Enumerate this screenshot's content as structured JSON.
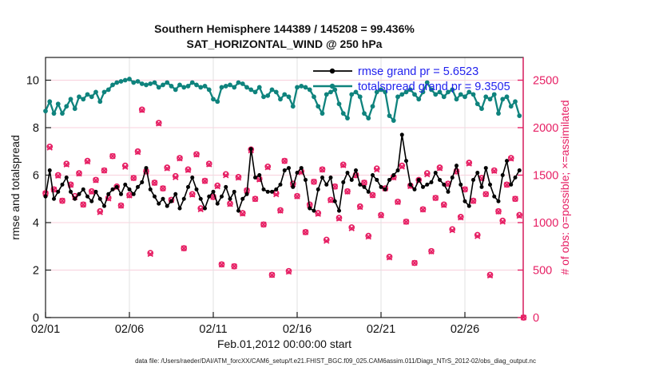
{
  "title": {
    "line1": "Southern Hemisphere 144389 / 145208 = 99.436%",
    "line2": "SAT_HORIZONTAL_WIND @ 250 hPa"
  },
  "colors": {
    "rmse": "#000000",
    "totalspread": "#0f837d",
    "obs": "#e61e63",
    "legend_text": "#2222ee",
    "grid_h": "#f8d0dc",
    "grid_v": "#e2e2e2",
    "spine": "#1a1a1a"
  },
  "axes": {
    "left": {
      "label": "rmse and totalspread",
      "ticks": [
        0,
        2,
        4,
        6,
        8,
        10
      ],
      "range": [
        0,
        10.96
      ]
    },
    "right": {
      "label": "# of obs: o=possible; ×=assimilated",
      "ticks": [
        0,
        500,
        1000,
        1500,
        2000,
        2500
      ],
      "range": [
        0,
        2740
      ]
    },
    "x": {
      "label": "Feb.01,2012 00:00:00 start",
      "tick_days": [
        1,
        6,
        11,
        16,
        21,
        26
      ],
      "tick_labels": [
        "02/01",
        "02/06",
        "02/11",
        "02/16",
        "02/21",
        "02/26"
      ],
      "range_days": [
        1,
        29.5
      ]
    }
  },
  "legend": {
    "items": [
      {
        "name": "rmse",
        "label": "rmse grand pr = 5.6523"
      },
      {
        "name": "totalspread",
        "label": "totalspread grand pr = 9.3505"
      }
    ]
  },
  "footer": {
    "datafile": "data file: /Users/raeder/DAI/ATM_forcXX/CAM6_setup/f.e21.FHIST_BGC.f09_025.CAM6assim.011/Diags_NTrS_2012-02/obs_diag_output.nc"
  },
  "chart_data": {
    "type": "line",
    "title": "Southern Hemisphere 144389 / 145208 = 99.436% | SAT_HORIZONTAL_WIND @ 250 hPa",
    "xlabel": "Feb.01,2012 00:00:00 start",
    "ylabel_left": "rmse and totalspread",
    "ylabel_right": "# of obs: o=possible; ×=assimilated",
    "grid": true,
    "legend_position": "top-right-inside",
    "x_start": 1.0,
    "x_step": 0.25,
    "n_points": 115,
    "series": [
      {
        "name": "rmse",
        "axis": "left",
        "marker": "filled-circle",
        "grand_value": 5.6523,
        "values": [
          5.1,
          6.2,
          5.0,
          5.3,
          5.6,
          5.9,
          5.3,
          5.0,
          5.2,
          5.4,
          5.1,
          4.9,
          5.3,
          5.0,
          4.7,
          5.2,
          5.4,
          5.5,
          5.2,
          5.6,
          5.4,
          5.2,
          5.5,
          5.7,
          6.3,
          5.4,
          5.1,
          4.8,
          5.0,
          4.7,
          4.9,
          5.2,
          4.6,
          5.0,
          5.5,
          5.9,
          5.4,
          5.0,
          4.6,
          5.1,
          5.3,
          4.8,
          5.1,
          5.5,
          5.0,
          5.3,
          4.5,
          5.0,
          5.2,
          7.1,
          5.9,
          6.0,
          5.4,
          5.3,
          5.3,
          5.4,
          5.6,
          6.2,
          6.3,
          5.5,
          6.1,
          6.3,
          5.8,
          4.6,
          4.5,
          5.4,
          5.9,
          5.6,
          5.9,
          4.9,
          4.5,
          5.7,
          6.1,
          5.8,
          6.2,
          5.6,
          5.5,
          5.3,
          6.0,
          5.8,
          5.5,
          5.4,
          5.8,
          6.0,
          6.2,
          7.7,
          6.6,
          5.6,
          5.4,
          5.8,
          5.5,
          5.6,
          5.7,
          6.1,
          5.8,
          5.6,
          5.3,
          5.9,
          6.4,
          5.6,
          4.9,
          4.7,
          5.8,
          6.1,
          5.5,
          6.3,
          5.6,
          5.1,
          4.9,
          6.0,
          6.6,
          5.6,
          5.9,
          6.2,
          null
        ]
      },
      {
        "name": "totalspread",
        "axis": "left",
        "marker": "filled-circle",
        "grand_value": 9.3505,
        "values": [
          8.7,
          9.1,
          8.6,
          9.0,
          8.6,
          8.9,
          9.2,
          8.8,
          9.3,
          9.2,
          9.4,
          9.3,
          9.5,
          9.1,
          9.5,
          9.6,
          9.8,
          9.9,
          9.95,
          10.0,
          10.05,
          9.9,
          9.95,
          9.85,
          9.8,
          9.85,
          9.9,
          9.7,
          9.8,
          9.9,
          9.75,
          9.6,
          9.8,
          9.7,
          9.75,
          9.9,
          9.8,
          9.7,
          9.75,
          9.6,
          9.2,
          9.1,
          9.7,
          9.75,
          9.8,
          9.7,
          9.9,
          9.85,
          9.7,
          9.6,
          9.5,
          9.7,
          9.3,
          9.35,
          9.6,
          9.5,
          9.2,
          9.4,
          9.3,
          8.9,
          9.7,
          9.75,
          9.7,
          9.6,
          9.3,
          8.9,
          8.6,
          9.4,
          9.5,
          9.6,
          9.0,
          8.6,
          8.4,
          9.4,
          9.5,
          9.3,
          8.6,
          8.4,
          8.9,
          9.5,
          9.6,
          9.5,
          8.5,
          8.3,
          9.3,
          9.4,
          9.5,
          9.6,
          9.4,
          9.2,
          9.5,
          9.9,
          9.6,
          9.4,
          9.5,
          9.3,
          9.5,
          9.6,
          9.2,
          9.4,
          9.3,
          9.5,
          9.4,
          9.0,
          8.8,
          9.3,
          9.2,
          9.4,
          8.6,
          9.2,
          9.3,
          8.9,
          9.1,
          8.5,
          null
        ]
      },
      {
        "name": "obs_possible",
        "axis": "right",
        "marker": "o",
        "values": [
          1310,
          1800,
          1350,
          1500,
          1230,
          1620,
          1400,
          1280,
          1520,
          1190,
          1650,
          1330,
          1450,
          1120,
          1550,
          1260,
          1700,
          1380,
          1180,
          1600,
          1290,
          1470,
          1750,
          2190,
          1540,
          680,
          1420,
          2050,
          1360,
          1580,
          1240,
          1490,
          1680,
          730,
          1560,
          1300,
          1720,
          1150,
          1440,
          1620,
          1270,
          1390,
          560,
          1510,
          1200,
          540,
          1480,
          1100,
          1340,
          1770,
          1250,
          1460,
          980,
          1590,
          450,
          1310,
          1130,
          1650,
          490,
          1410,
          1280,
          1540,
          900,
          1190,
          1430,
          1100,
          1560,
          820,
          1240,
          1380,
          1050,
          1610,
          1330,
          950,
          1500,
          1170,
          1420,
          860,
          1290,
          1570,
          1080,
          1360,
          640,
          1480,
          1220,
          1600,
          1010,
          1390,
          575,
          1450,
          1140,
          1520,
          700,
          1260,
          1580,
          1190,
          1410,
          930,
          1540,
          1060,
          1350,
          1630,
          1230,
          870,
          1470,
          1300,
          450,
          1550,
          1120,
          1020,
          1400,
          1680,
          1250,
          1080,
          0
        ]
      },
      {
        "name": "obs_assimilated",
        "axis": "right",
        "marker": "x",
        "values": [
          1306,
          1789,
          1348,
          1493,
          1230,
          1611,
          1397,
          1267,
          1515,
          1189,
          1642,
          1324,
          1446,
          1109,
          1548,
          1253,
          1700,
          1371,
          1177,
          1587,
          1285,
          1469,
          1742,
          2184,
          1536,
          669,
          1418,
          2043,
          1360,
          1571,
          1237,
          1477,
          1675,
          729,
          1552,
          1294,
          1716,
          1139,
          1438,
          1613,
          1270,
          1381,
          557,
          1497,
          1195,
          539,
          1472,
          1094,
          1336,
          1759,
          1248,
          1453,
          980,
          1581,
          447,
          1297,
          1125,
          1649,
          482,
          1404,
          1276,
          1529,
          898,
          1183,
          1430,
          1091,
          1557,
          807,
          1235,
          1379,
          1042,
          1604,
          1326,
          939,
          1498,
          1163,
          1420,
          851,
          1287,
          1557,
          1075,
          1359,
          632,
          1474,
          1216,
          1589,
          1008,
          1383,
          575,
          1441,
          1137,
          1507,
          695,
          1259,
          1572,
          1184,
          1406,
          919,
          1538,
          1053,
          1350,
          1621,
          1227,
          857,
          1465,
          1299,
          442,
          1544,
          1116,
          1009,
          1398,
          1673,
          1250,
          1071,
          0
        ]
      }
    ]
  }
}
